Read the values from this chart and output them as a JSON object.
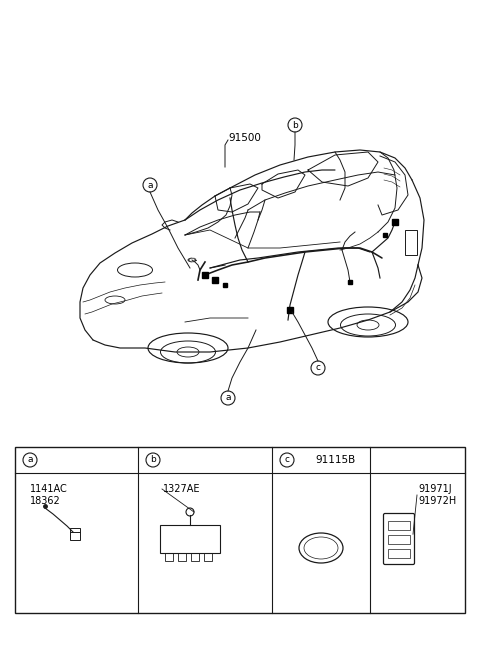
{
  "bg_color": "#ffffff",
  "car_label_91500": "91500",
  "label_a": "a",
  "label_b": "b",
  "label_c": "c",
  "part_a_codes": [
    "1141AC",
    "18362"
  ],
  "part_b_code": "1327AE",
  "part_c_code": "91115B",
  "part_d_codes": [
    "91971J",
    "91972H"
  ],
  "fig_width": 4.8,
  "fig_height": 6.55,
  "dpi": 100,
  "line_color": "#1a1a1a",
  "line_lw": 0.85
}
